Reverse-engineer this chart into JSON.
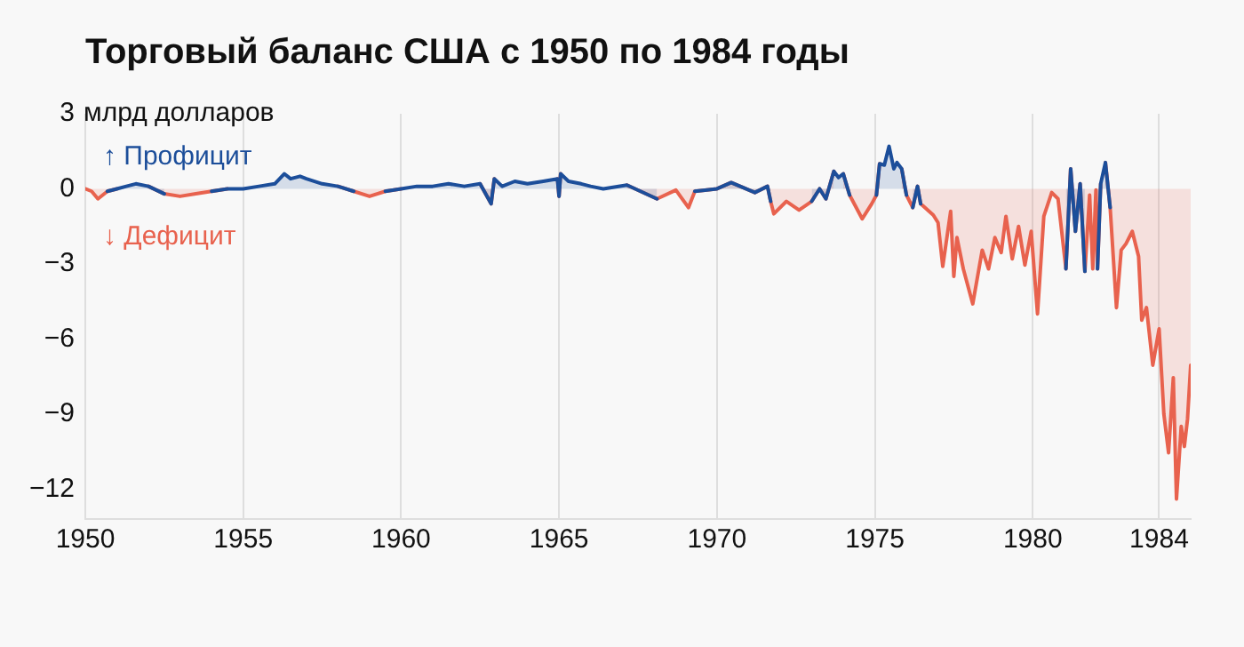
{
  "chart_data": {
    "type": "area",
    "title": "Торговый баланс США с 1950 по 1984 годы",
    "ylabel": "млрд долларов",
    "xlim": [
      1950,
      1985
    ],
    "xticks": [
      1950,
      1955,
      1960,
      1965,
      1970,
      1975,
      1980,
      1984
    ],
    "ylim": [
      -13.2,
      3
    ],
    "yticks": [
      3,
      0,
      {
        "value": -3,
        "label": "−3"
      },
      {
        "value": -6,
        "label": "−6"
      },
      {
        "value": -9,
        "label": "−9"
      },
      {
        "value": -12,
        "label": "−12"
      }
    ],
    "grid": "x",
    "legend": false,
    "marker": "none",
    "line_style": "solid",
    "series": [
      {
        "name": "↑ Профицит",
        "color": "#1c4e9a",
        "x": [
          1950.7,
          1951.0,
          1951.3,
          1951.6,
          1952.0,
          1952.5,
          1953.2,
          1954.0,
          1954.5,
          1955.0,
          1955.5,
          1956.0,
          1956.3,
          1956.5,
          1956.8,
          1957.0,
          1957.5,
          1958.0,
          1958.5,
          1959.2,
          1959.5,
          1960.0,
          1960.5,
          1961.0,
          1961.5,
          1962.0,
          1962.5,
          1962.85,
          1962.95,
          1963.2,
          1963.6,
          1964.0,
          1964.5,
          1964.95,
          1965.0,
          1965.05,
          1965.3,
          1965.7,
          1966.0,
          1966.4,
          1967.15,
          1968.1,
          1968.9,
          1969.3,
          1970.0,
          1970.45,
          1971.2,
          1971.6,
          1971.7,
          1972.4,
          1973.0,
          1973.25,
          1973.45,
          1973.7,
          1973.85,
          1974.0,
          1974.2,
          1974.7,
          1975.05,
          1975.15,
          1975.3,
          1975.45,
          1975.6,
          1975.7,
          1975.85,
          1976.0,
          1976.1,
          1976.2,
          1976.35,
          1976.45,
          1978.5,
          1981.05,
          1981.2,
          1981.35,
          1981.5,
          1981.65,
          1981.85,
          1982.05,
          1982.15,
          1982.3,
          1982.45
        ],
        "values": [
          -0.1,
          0,
          0.1,
          0.2,
          0.1,
          -0.2,
          null,
          -0.1,
          0,
          0,
          0.1,
          0.2,
          0.6,
          0.4,
          0.5,
          0.4,
          0.2,
          0.1,
          -0.1,
          null,
          -0.1,
          0,
          0.1,
          0.1,
          0.2,
          0.1,
          0.2,
          -0.6,
          0.4,
          0.1,
          0.3,
          0.2,
          0.3,
          0.4,
          -0.3,
          0.6,
          0.3,
          0.2,
          0.1,
          0,
          0.15,
          -0.4,
          null,
          -0.1,
          0,
          0.25,
          -0.15,
          0.1,
          -0.5,
          null,
          -0.5,
          0,
          -0.4,
          0.7,
          0.45,
          0.6,
          -0.25,
          null,
          -0.25,
          1.0,
          0.95,
          1.7,
          0.8,
          1.05,
          0.8,
          -0.25,
          null,
          -0.75,
          0.1,
          -0.6,
          null,
          -3.2,
          0.8,
          -1.7,
          0.2,
          -3.3,
          null,
          -3.2,
          0.2,
          1.05,
          -0.75
        ]
      },
      {
        "name": "↓ Дефицит",
        "color": "#e8624e",
        "x": [
          1950.0,
          1950.2,
          1950.4,
          1950.7,
          1951.0,
          1951.5,
          1952.0,
          1952.5,
          1953.0,
          1953.5,
          1954.0,
          1954.5,
          1956.0,
          1958.0,
          1958.5,
          1959.0,
          1959.5,
          1960.0,
          1961.0,
          1962.5,
          1962.85,
          1962.95,
          1963.8,
          1964.95,
          1965.0,
          1965.05,
          1966.0,
          1967.15,
          1968.1,
          1968.7,
          1969.1,
          1969.3,
          1970.0,
          1970.45,
          1971.2,
          1971.6,
          1971.7,
          1971.8,
          1972.2,
          1972.6,
          1973.0,
          1973.25,
          1973.45,
          1973.7,
          1973.8,
          1974.0,
          1974.2,
          1974.6,
          1974.9,
          1975.05,
          1975.15,
          1975.5,
          1975.85,
          1976.0,
          1976.2,
          1976.35,
          1976.45,
          1976.85,
          1977.0,
          1977.15,
          1977.4,
          1977.5,
          1977.6,
          1977.8,
          1978.1,
          1978.4,
          1978.6,
          1978.8,
          1979.0,
          1979.15,
          1979.35,
          1979.55,
          1979.75,
          1979.95,
          1980.15,
          1980.35,
          1980.6,
          1980.8,
          1981.05,
          1981.2,
          1981.35,
          1981.5,
          1981.65,
          1981.8,
          1981.9,
          1982.0,
          1982.05,
          1982.15,
          1982.2,
          1982.3,
          1982.45,
          1982.65,
          1982.8,
          1982.95,
          1983.15,
          1983.35,
          1983.45,
          1983.6,
          1983.8,
          1984.0,
          1984.15,
          1984.3,
          1984.45,
          1984.55,
          1984.7,
          1984.8,
          1984.9,
          1985.0
        ],
        "values": [
          0,
          -0.1,
          -0.4,
          -0.1,
          0,
          null,
          0.1,
          -0.2,
          -0.3,
          -0.2,
          -0.1,
          0,
          null,
          0.1,
          -0.1,
          -0.3,
          -0.1,
          0,
          null,
          0.2,
          -0.6,
          0.4,
          null,
          0.4,
          -0.3,
          0.6,
          null,
          0.15,
          -0.4,
          -0.05,
          -0.75,
          -0.1,
          0,
          0.25,
          -0.15,
          0.1,
          -0.5,
          -1.0,
          -0.5,
          -0.85,
          -0.5,
          0,
          -0.4,
          0.7,
          null,
          0.6,
          -0.25,
          -1.2,
          -0.6,
          -0.25,
          1.0,
          null,
          0.8,
          -0.25,
          -0.75,
          0.1,
          -0.6,
          -1.05,
          -1.35,
          -3.1,
          -0.9,
          -3.5,
          -1.95,
          -3.2,
          -4.6,
          -2.45,
          -3.2,
          -1.95,
          -2.55,
          -1.1,
          -2.8,
          -1.5,
          -3.05,
          -1.7,
          -5.0,
          -1.1,
          -0.15,
          -0.4,
          -3.2,
          0.8,
          -1.7,
          0.2,
          -3.3,
          -0.25,
          -3.2,
          -0.05,
          -3.2,
          0.2,
          null,
          1.05,
          -0.75,
          -4.75,
          -2.45,
          -2.2,
          -1.7,
          -2.7,
          -5.25,
          -4.75,
          -7.05,
          -5.6,
          -9.0,
          -10.55,
          -7.55,
          -12.4,
          -9.5,
          -10.3,
          -9.2,
          -7.05
        ]
      }
    ]
  }
}
